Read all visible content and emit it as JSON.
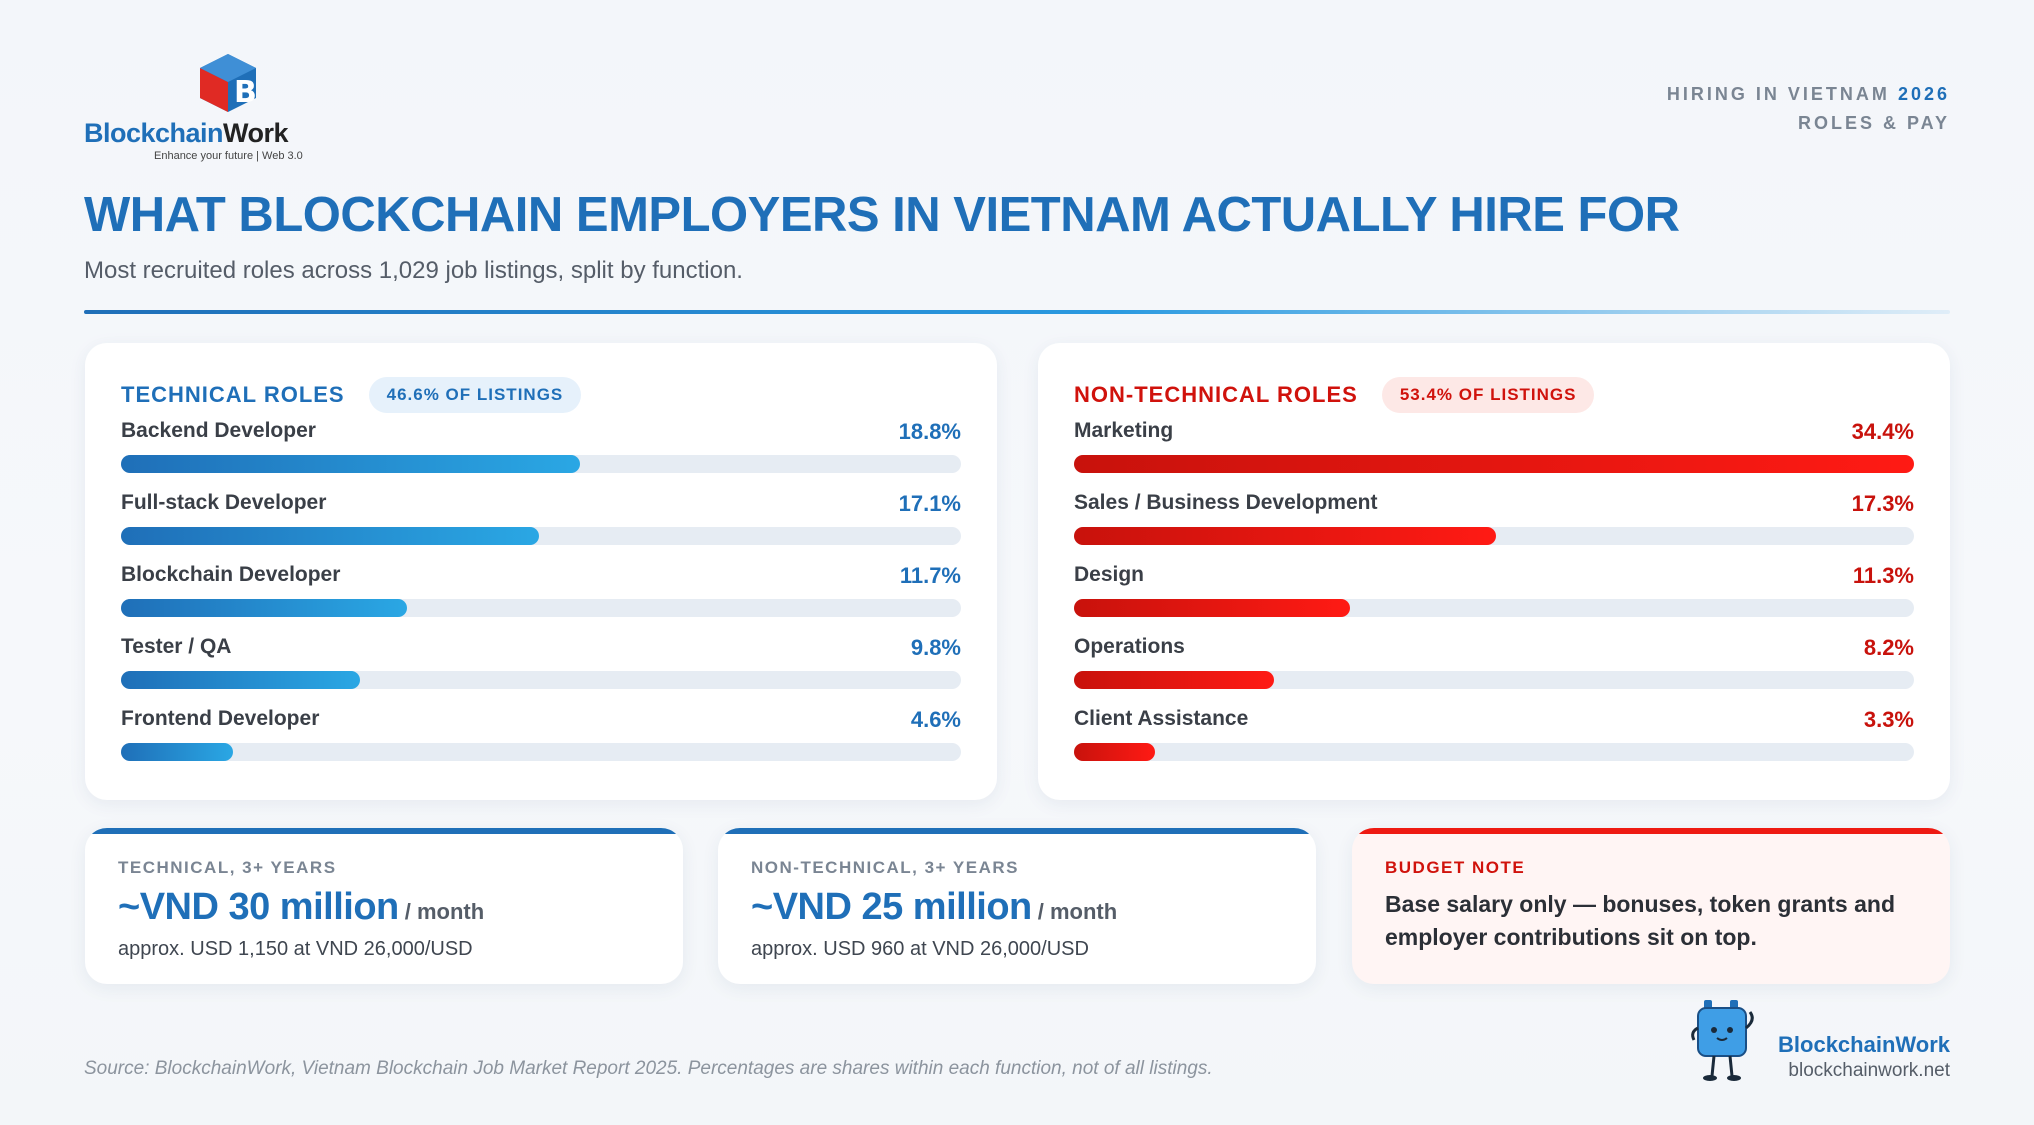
{
  "logo": {
    "word_part1": "Blockchain",
    "word_part2": "Work",
    "tagline": "Enhance your future | Web 3.0",
    "icon": "b-cube-logo-icon"
  },
  "kicker": {
    "line1_prefix": "HIRING IN VIETNAM",
    "line1_year": "2026",
    "line2": "ROLES & PAY"
  },
  "header": {
    "title": "WHAT BLOCKCHAIN EMPLOYERS IN VIETNAM ACTUALLY HIRE FOR",
    "subtitle": "Most recruited roles across 1,029 job listings, split by function."
  },
  "colors": {
    "blue": "#1f6fb8",
    "red": "#d0120c"
  },
  "chart_data": [
    {
      "type": "bar",
      "title": "TECHNICAL ROLES",
      "badge": "46.6% OF LISTINGS",
      "categories": [
        "Backend Developer",
        "Full-stack Developer",
        "Blockchain Developer",
        "Tester / QA",
        "Frontend Developer"
      ],
      "values": [
        18.8,
        17.1,
        11.7,
        9.8,
        4.6
      ],
      "value_labels": [
        "18.8%",
        "17.1%",
        "11.7%",
        "9.8%",
        "4.6%"
      ],
      "xlim": [
        0,
        34.4
      ],
      "orientation": "horizontal"
    },
    {
      "type": "bar",
      "title": "NON-TECHNICAL ROLES",
      "badge": "53.4% OF LISTINGS",
      "categories": [
        "Marketing",
        "Sales / Business Development",
        "Design",
        "Operations",
        "Client Assistance"
      ],
      "values": [
        34.4,
        17.3,
        11.3,
        8.2,
        3.3
      ],
      "value_labels": [
        "34.4%",
        "17.3%",
        "11.3%",
        "8.2%",
        "3.3%"
      ],
      "xlim": [
        0,
        34.4
      ],
      "orientation": "horizontal"
    }
  ],
  "cards": {
    "technical": {
      "kicker": "TECHNICAL, 3+ YEARS",
      "amount": "~VND 30 million",
      "unit": "/ month",
      "sub": "approx. USD 1,150 at VND 26,000/USD"
    },
    "nontechnical": {
      "kicker": "NON-TECHNICAL, 3+ YEARS",
      "amount": "~VND 25 million",
      "unit": "/ month",
      "sub": "approx. USD 960 at VND 26,000/USD"
    },
    "budget": {
      "kicker": "BUDGET NOTE",
      "note": "Base salary only — bonuses, token grants and employer contributions sit on top."
    }
  },
  "footer": {
    "source": "Source: BlockchainWork, Vietnam Blockchain Job Market Report 2025. Percentages are shares within each function, not of all listings.",
    "brand_name": "BlockchainWork",
    "brand_url": "blockchainwork.net",
    "mascot_icon": "cube-mascot-icon"
  }
}
